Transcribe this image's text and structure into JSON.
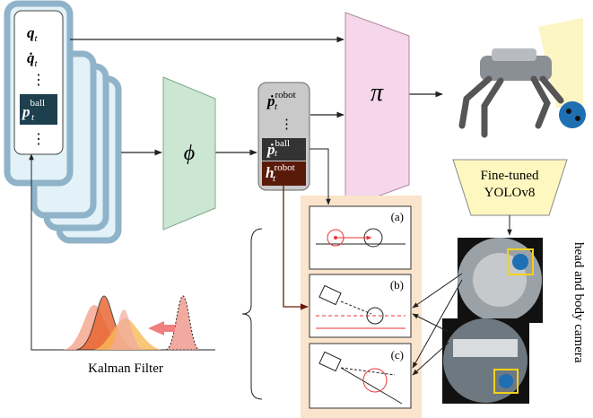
{
  "input_stack": {
    "items": [
      {
        "symbol": "q",
        "sub": "t"
      },
      {
        "symbol": "q̇",
        "sub": "t"
      },
      {
        "symbol": "⋮"
      },
      {
        "symbol": "p",
        "sub": "t",
        "sup": "ball"
      },
      {
        "symbol": "⋮"
      }
    ]
  },
  "encoder": {
    "label": "ϕ"
  },
  "latent": {
    "items": [
      {
        "symbol": "ṗ",
        "sub": "t",
        "sup": "robot"
      },
      {
        "symbol": "⋮"
      },
      {
        "symbol": "ṗ",
        "sub": "t",
        "sup": "ball"
      },
      {
        "symbol": "h",
        "sub": "t",
        "sup": "robot"
      }
    ]
  },
  "policy": {
    "label": "π"
  },
  "detector": {
    "lines": [
      "Fine-tuned",
      "YOLOv8"
    ]
  },
  "panels": [
    "(a)",
    "(b)",
    "(c)"
  ],
  "filter": {
    "label": "Kalman Filter"
  },
  "camera": {
    "label": "head and body camera"
  }
}
